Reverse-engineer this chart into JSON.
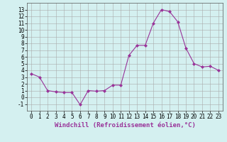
{
  "x": [
    0,
    1,
    2,
    3,
    4,
    5,
    6,
    7,
    8,
    9,
    10,
    11,
    12,
    13,
    14,
    15,
    16,
    17,
    18,
    19,
    20,
    21,
    22,
    23
  ],
  "y": [
    3.5,
    3.0,
    1.0,
    0.8,
    0.7,
    0.7,
    -1.1,
    1.0,
    0.9,
    1.0,
    1.8,
    1.8,
    6.2,
    7.7,
    7.7,
    11.0,
    13.0,
    12.7,
    11.2,
    7.3,
    5.0,
    4.5,
    4.6,
    4.0
  ],
  "line_color": "#993399",
  "marker": "D",
  "marker_size": 2,
  "bg_color": "#d4f0f0",
  "grid_color": "#aaaaaa",
  "xlabel": "Windchill (Refroidissement éolien,°C)",
  "xlabel_fontsize": 6.5,
  "tick_fontsize": 5.5,
  "ylim": [
    -2,
    14
  ],
  "xlim": [
    -0.5,
    23.5
  ],
  "yticks": [
    -1,
    0,
    1,
    2,
    3,
    4,
    5,
    6,
    7,
    8,
    9,
    10,
    11,
    12,
    13
  ],
  "xticks": [
    0,
    1,
    2,
    3,
    4,
    5,
    6,
    7,
    8,
    9,
    10,
    11,
    12,
    13,
    14,
    15,
    16,
    17,
    18,
    19,
    20,
    21,
    22,
    23
  ]
}
